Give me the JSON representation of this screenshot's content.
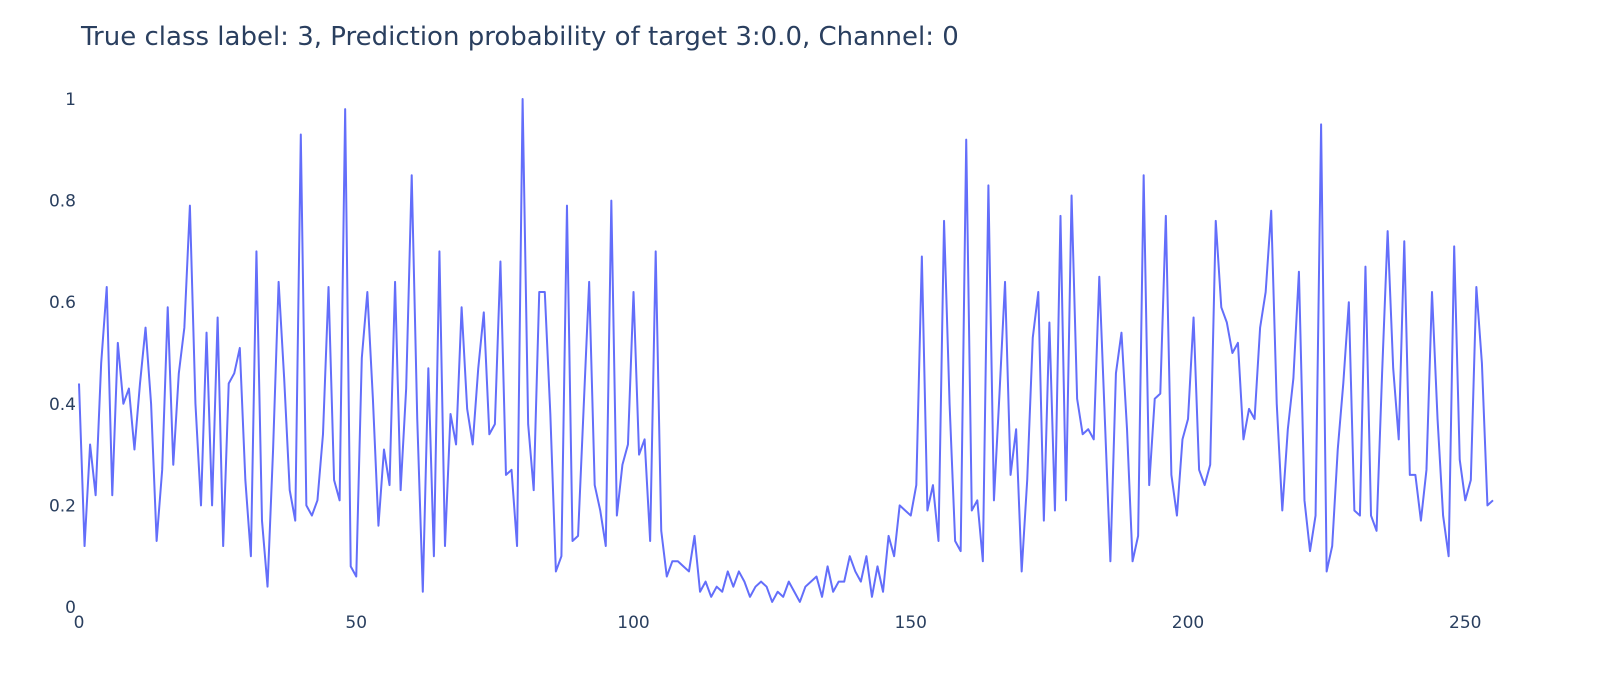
{
  "chart_data": {
    "type": "line",
    "title": "True class label: 3, Prediction probability of target 3:0.0, Channel: 0",
    "xlabel": "",
    "ylabel": "",
    "xlim": [
      0,
      255
    ],
    "ylim": [
      0,
      1
    ],
    "x_ticks": [
      "0",
      "50",
      "100",
      "150",
      "200",
      "250"
    ],
    "y_ticks": [
      "0",
      "0.2",
      "0.4",
      "0.6",
      "0.8",
      "1"
    ],
    "grid": false,
    "legend": "none",
    "line_color": "#636efa",
    "series": [
      {
        "values": [
          0.44,
          0.12,
          0.32,
          0.22,
          0.48,
          0.63,
          0.22,
          0.52,
          0.4,
          0.43,
          0.31,
          0.44,
          0.55,
          0.4,
          0.13,
          0.27,
          0.59,
          0.28,
          0.46,
          0.55,
          0.79,
          0.4,
          0.2,
          0.54,
          0.2,
          0.57,
          0.12,
          0.44,
          0.46,
          0.51,
          0.25,
          0.1,
          0.7,
          0.17,
          0.04,
          0.31,
          0.64,
          0.45,
          0.23,
          0.17,
          0.93,
          0.2,
          0.18,
          0.21,
          0.34,
          0.63,
          0.25,
          0.21,
          0.98,
          0.08,
          0.06,
          0.49,
          0.62,
          0.41,
          0.16,
          0.31,
          0.24,
          0.64,
          0.23,
          0.43,
          0.85,
          0.37,
          0.03,
          0.47,
          0.1,
          0.7,
          0.12,
          0.38,
          0.32,
          0.59,
          0.39,
          0.32,
          0.47,
          0.58,
          0.34,
          0.36,
          0.68,
          0.26,
          0.27,
          0.12,
          1.0,
          0.36,
          0.23,
          0.62,
          0.62,
          0.38,
          0.07,
          0.1,
          0.79,
          0.13,
          0.14,
          0.39,
          0.64,
          0.24,
          0.19,
          0.12,
          0.8,
          0.18,
          0.28,
          0.32,
          0.62,
          0.3,
          0.33,
          0.13,
          0.7,
          0.15,
          0.06,
          0.09,
          0.09,
          0.08,
          0.07,
          0.14,
          0.03,
          0.05,
          0.02,
          0.04,
          0.03,
          0.07,
          0.04,
          0.07,
          0.05,
          0.02,
          0.04,
          0.05,
          0.04,
          0.01,
          0.03,
          0.02,
          0.05,
          0.03,
          0.01,
          0.04,
          0.05,
          0.06,
          0.02,
          0.08,
          0.03,
          0.05,
          0.05,
          0.1,
          0.07,
          0.05,
          0.1,
          0.02,
          0.08,
          0.03,
          0.14,
          0.1,
          0.2,
          0.19,
          0.18,
          0.24,
          0.69,
          0.19,
          0.24,
          0.13,
          0.76,
          0.4,
          0.13,
          0.11,
          0.92,
          0.19,
          0.21,
          0.09,
          0.83,
          0.21,
          0.42,
          0.64,
          0.26,
          0.35,
          0.07,
          0.25,
          0.53,
          0.62,
          0.17,
          0.56,
          0.19,
          0.77,
          0.21,
          0.81,
          0.41,
          0.34,
          0.35,
          0.33,
          0.65,
          0.37,
          0.09,
          0.46,
          0.54,
          0.35,
          0.09,
          0.14,
          0.85,
          0.24,
          0.41,
          0.42,
          0.77,
          0.26,
          0.18,
          0.33,
          0.37,
          0.57,
          0.27,
          0.24,
          0.28,
          0.76,
          0.59,
          0.56,
          0.5,
          0.52,
          0.33,
          0.39,
          0.37,
          0.55,
          0.62,
          0.78,
          0.4,
          0.19,
          0.35,
          0.45,
          0.66,
          0.21,
          0.11,
          0.18,
          0.95,
          0.07,
          0.12,
          0.31,
          0.44,
          0.6,
          0.19,
          0.18,
          0.67,
          0.18,
          0.15,
          0.46,
          0.74,
          0.47,
          0.33,
          0.72,
          0.26,
          0.26,
          0.17,
          0.27,
          0.62,
          0.37,
          0.18,
          0.1,
          0.71,
          0.29,
          0.21,
          0.25,
          0.63,
          0.48,
          0.2,
          0.21
        ]
      }
    ]
  }
}
